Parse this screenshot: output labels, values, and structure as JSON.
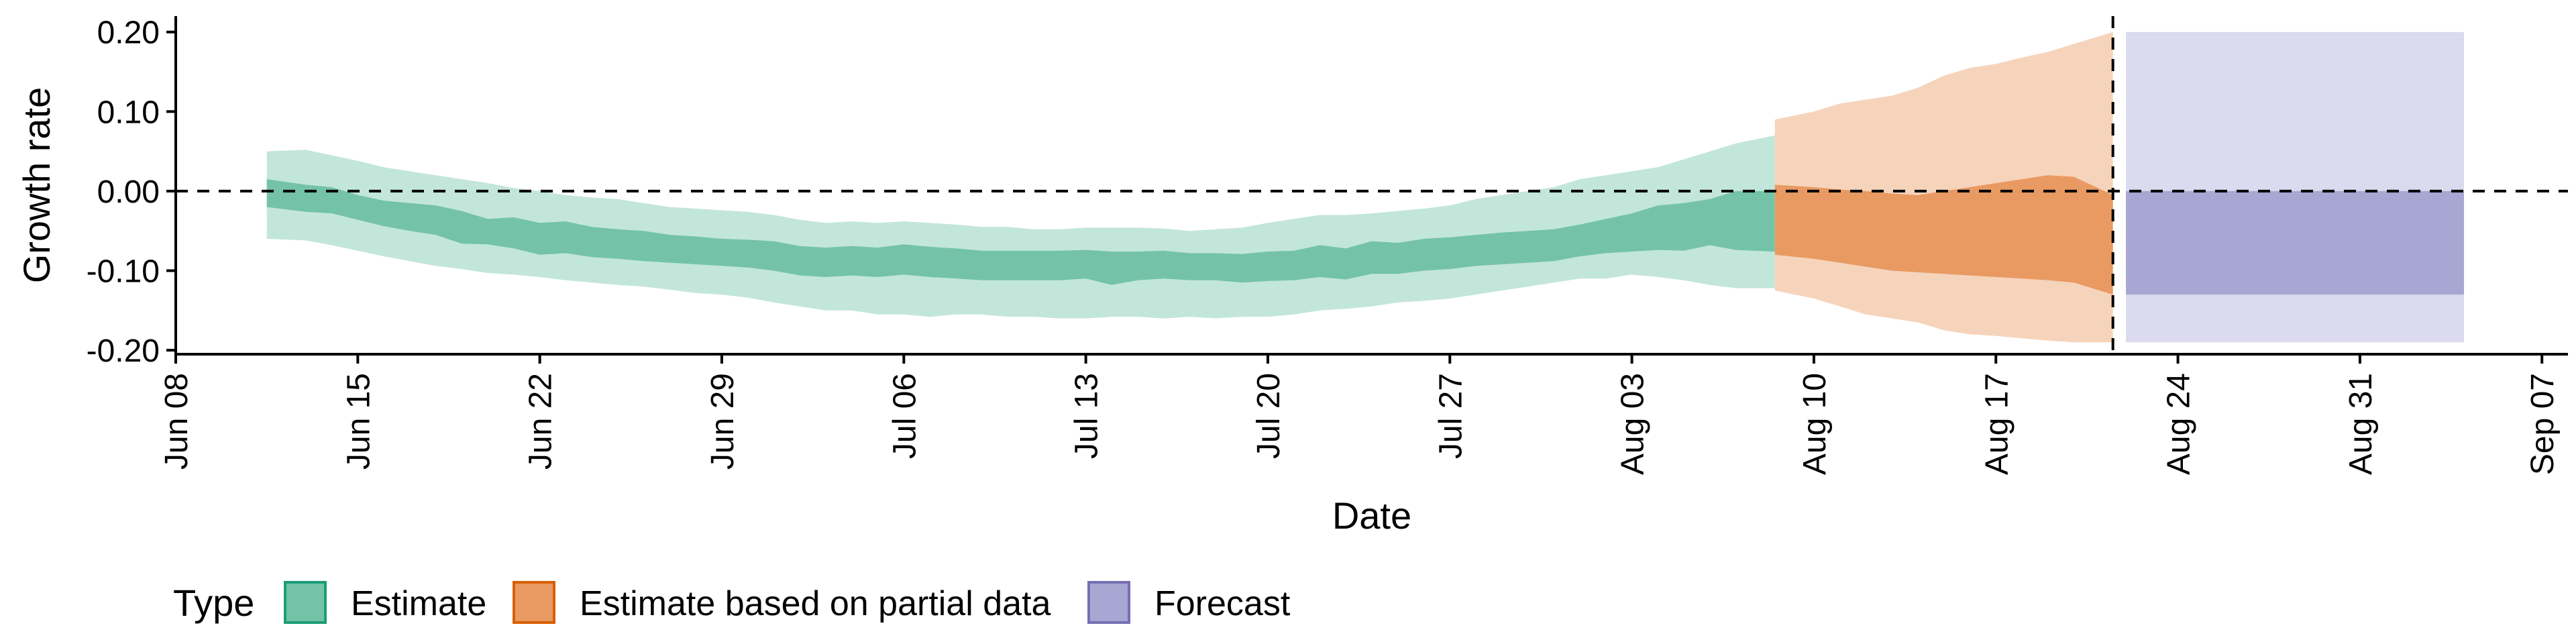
{
  "chart_data": {
    "type": "area",
    "xlabel": "Date",
    "ylabel": "Growth rate",
    "x_ticks": [
      "Jun 08",
      "Jun 15",
      "Jun 22",
      "Jun 29",
      "Jul 06",
      "Jul 13",
      "Jul 20",
      "Jul 27",
      "Aug 03",
      "Aug 10",
      "Aug 17",
      "Aug 24",
      "Aug 31",
      "Sep 07"
    ],
    "x_tick_dates": [
      "2020-06-08",
      "2020-06-15",
      "2020-06-22",
      "2020-06-29",
      "2020-07-06",
      "2020-07-13",
      "2020-07-20",
      "2020-07-27",
      "2020-08-03",
      "2020-08-10",
      "2020-08-17",
      "2020-08-24",
      "2020-08-31",
      "2020-09-07"
    ],
    "xlim": [
      "2020-06-08",
      "2020-09-08"
    ],
    "y_ticks": [
      "-0.20",
      "-0.10",
      "0.00",
      "0.10",
      "0.20"
    ],
    "y_tick_values": [
      -0.2,
      -0.1,
      0.0,
      0.1,
      0.2
    ],
    "ylim": [
      -0.205,
      0.22
    ],
    "reference_hline": 0.0,
    "reference_vline": "2020-08-21",
    "legend": {
      "title": "Type",
      "position": "bottom",
      "entries": [
        "Estimate",
        "Estimate based on partial data",
        "Forecast"
      ]
    },
    "colors": {
      "Estimate": {
        "inner": "#74c3a8",
        "outer": "#c3e6da",
        "border": "#1b9e77"
      },
      "Estimate based on partial data": {
        "inner": "#e89a62",
        "outer": "#f6d4bb",
        "border": "#d95f02"
      },
      "Forecast": {
        "inner": "#a8a6d2",
        "outer": "#dbdaee",
        "border": "#7570b3"
      }
    },
    "series": [
      {
        "name": "Estimate",
        "x": [
          "2020-06-12",
          "2020-06-13",
          "2020-06-14",
          "2020-06-15",
          "2020-06-16",
          "2020-06-17",
          "2020-06-18",
          "2020-06-19",
          "2020-06-20",
          "2020-06-21",
          "2020-06-22",
          "2020-06-23",
          "2020-06-24",
          "2020-06-25",
          "2020-06-26",
          "2020-06-27",
          "2020-06-28",
          "2020-06-29",
          "2020-06-30",
          "2020-07-01",
          "2020-07-02",
          "2020-07-03",
          "2020-07-04",
          "2020-07-05",
          "2020-07-06",
          "2020-07-07",
          "2020-07-08",
          "2020-07-09",
          "2020-07-10",
          "2020-07-11",
          "2020-07-12",
          "2020-07-13",
          "2020-07-14",
          "2020-07-15",
          "2020-07-16",
          "2020-07-17",
          "2020-07-18",
          "2020-07-19",
          "2020-07-20",
          "2020-07-21",
          "2020-07-22",
          "2020-07-23",
          "2020-07-24",
          "2020-07-25",
          "2020-07-26",
          "2020-07-27",
          "2020-07-28",
          "2020-07-29",
          "2020-07-30",
          "2020-07-31",
          "2020-08-01",
          "2020-08-02",
          "2020-08-03",
          "2020-08-04",
          "2020-08-05",
          "2020-08-06",
          "2020-08-07",
          "2020-08-08"
        ],
        "inner_upper": [
          0.015,
          0.008,
          0.005,
          -0.005,
          -0.012,
          -0.015,
          -0.018,
          -0.025,
          -0.035,
          -0.033,
          -0.04,
          -0.038,
          -0.045,
          -0.048,
          -0.05,
          -0.055,
          -0.057,
          -0.06,
          -0.061,
          -0.063,
          -0.069,
          -0.071,
          -0.069,
          -0.071,
          -0.067,
          -0.07,
          -0.072,
          -0.075,
          -0.075,
          -0.075,
          -0.075,
          -0.074,
          -0.076,
          -0.076,
          -0.075,
          -0.078,
          -0.078,
          -0.079,
          -0.076,
          -0.075,
          -0.068,
          -0.072,
          -0.063,
          -0.065,
          -0.06,
          -0.058,
          -0.055,
          -0.052,
          -0.05,
          -0.048,
          -0.042,
          -0.035,
          -0.028,
          -0.018,
          -0.015,
          -0.01,
          0.0,
          0.0
        ],
        "inner_lower": [
          -0.02,
          -0.026,
          -0.028,
          -0.036,
          -0.044,
          -0.05,
          -0.055,
          -0.066,
          -0.067,
          -0.072,
          -0.08,
          -0.078,
          -0.083,
          -0.085,
          -0.088,
          -0.09,
          -0.092,
          -0.094,
          -0.096,
          -0.1,
          -0.106,
          -0.108,
          -0.106,
          -0.108,
          -0.105,
          -0.108,
          -0.11,
          -0.112,
          -0.112,
          -0.112,
          -0.112,
          -0.11,
          -0.118,
          -0.112,
          -0.11,
          -0.112,
          -0.112,
          -0.115,
          -0.113,
          -0.112,
          -0.108,
          -0.111,
          -0.104,
          -0.104,
          -0.1,
          -0.098,
          -0.094,
          -0.092,
          -0.09,
          -0.088,
          -0.082,
          -0.078,
          -0.076,
          -0.074,
          -0.075,
          -0.068,
          -0.074,
          -0.076
        ],
        "outer_upper": [
          0.05,
          0.052,
          0.045,
          0.038,
          0.03,
          0.025,
          0.02,
          0.015,
          0.01,
          0.004,
          0.0,
          -0.005,
          -0.008,
          -0.01,
          -0.015,
          -0.02,
          -0.022,
          -0.024,
          -0.026,
          -0.03,
          -0.036,
          -0.04,
          -0.038,
          -0.04,
          -0.038,
          -0.04,
          -0.042,
          -0.045,
          -0.045,
          -0.048,
          -0.048,
          -0.046,
          -0.046,
          -0.046,
          -0.047,
          -0.05,
          -0.048,
          -0.046,
          -0.04,
          -0.035,
          -0.03,
          -0.03,
          -0.028,
          -0.025,
          -0.022,
          -0.018,
          -0.01,
          -0.005,
          0.0,
          0.005,
          0.015,
          0.02,
          0.025,
          0.03,
          0.04,
          0.05,
          0.06,
          0.07
        ],
        "outer_lower": [
          -0.06,
          -0.062,
          -0.068,
          -0.075,
          -0.082,
          -0.088,
          -0.094,
          -0.098,
          -0.103,
          -0.105,
          -0.108,
          -0.112,
          -0.115,
          -0.118,
          -0.12,
          -0.124,
          -0.128,
          -0.13,
          -0.134,
          -0.14,
          -0.145,
          -0.15,
          -0.15,
          -0.155,
          -0.155,
          -0.158,
          -0.155,
          -0.155,
          -0.158,
          -0.158,
          -0.16,
          -0.16,
          -0.158,
          -0.158,
          -0.16,
          -0.158,
          -0.16,
          -0.158,
          -0.158,
          -0.155,
          -0.15,
          -0.148,
          -0.145,
          -0.14,
          -0.138,
          -0.135,
          -0.13,
          -0.125,
          -0.12,
          -0.115,
          -0.11,
          -0.11,
          -0.105,
          -0.108,
          -0.112,
          -0.118,
          -0.122,
          -0.122
        ]
      },
      {
        "name": "Estimate based on partial data",
        "x": [
          "2020-08-09",
          "2020-08-10",
          "2020-08-11",
          "2020-08-12",
          "2020-08-13",
          "2020-08-14",
          "2020-08-15",
          "2020-08-16",
          "2020-08-17",
          "2020-08-18",
          "2020-08-19",
          "2020-08-20",
          "2020-08-21"
        ],
        "inner_upper": [
          0.008,
          0.005,
          0.002,
          0.0,
          -0.003,
          -0.005,
          0.0,
          0.005,
          0.01,
          0.015,
          0.02,
          0.018,
          -0.005
        ],
        "inner_lower": [
          -0.08,
          -0.085,
          -0.09,
          -0.095,
          -0.1,
          -0.102,
          -0.104,
          -0.106,
          -0.108,
          -0.11,
          -0.112,
          -0.115,
          -0.13
        ],
        "outer_upper": [
          0.09,
          0.1,
          0.11,
          0.115,
          0.12,
          0.13,
          0.145,
          0.155,
          0.16,
          0.168,
          0.175,
          0.185,
          0.2
        ],
        "outer_lower": [
          -0.125,
          -0.135,
          -0.145,
          -0.155,
          -0.16,
          -0.165,
          -0.175,
          -0.18,
          -0.182,
          -0.185,
          -0.188,
          -0.19,
          -0.19
        ]
      },
      {
        "name": "Forecast",
        "x": [
          "2020-08-22",
          "2020-09-04"
        ],
        "inner_upper": [
          0.0,
          0.0
        ],
        "inner_lower": [
          -0.13,
          -0.13
        ],
        "outer_upper": [
          0.2,
          0.2
        ],
        "outer_lower": [
          -0.19,
          -0.19
        ]
      }
    ]
  }
}
